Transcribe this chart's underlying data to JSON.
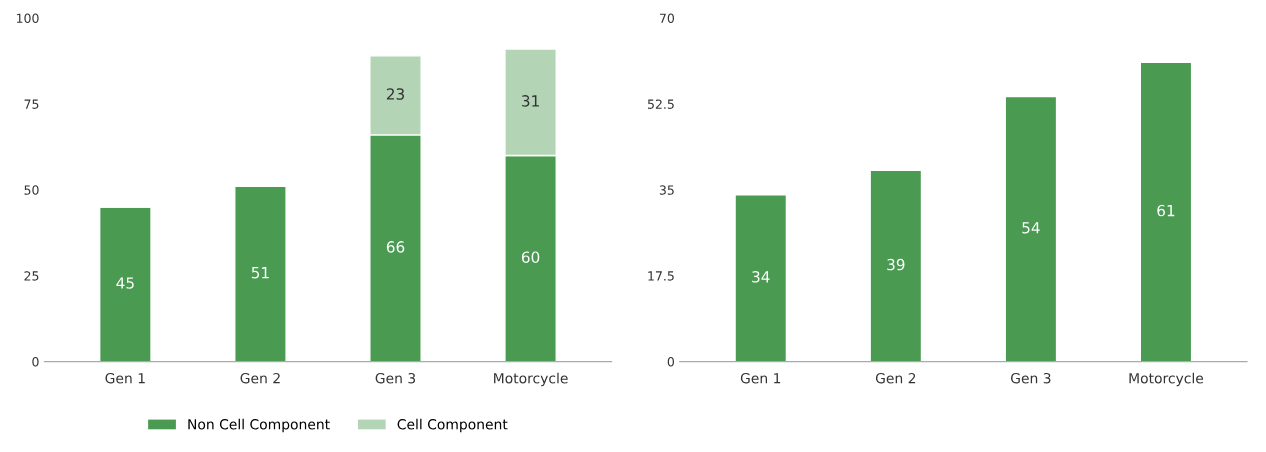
{
  "chart_data": [
    {
      "type": "bar",
      "stacked": true,
      "categories": [
        "Gen 1",
        "Gen 2",
        "Gen 3",
        "Motorcycle"
      ],
      "series": [
        {
          "name": "Non Cell Component",
          "color": "#4a9a52",
          "values": [
            45,
            51,
            66,
            60
          ]
        },
        {
          "name": "Cell Component",
          "color": "#b3d5b5",
          "values": [
            null,
            null,
            23,
            31
          ]
        }
      ],
      "ylim": [
        0,
        100
      ],
      "yticks": [
        0,
        25,
        50,
        75,
        100
      ],
      "grid": false,
      "legend": "bottom",
      "data_labels": true
    },
    {
      "type": "bar",
      "categories": [
        "Gen 1",
        "Gen 2",
        "Gen 3",
        "Motorcycle"
      ],
      "series": [
        {
          "color": "#4a9a52",
          "values": [
            34,
            39,
            54,
            61
          ]
        }
      ],
      "ylim": [
        0,
        70
      ],
      "yticks": [
        0,
        17.5,
        35,
        52.5,
        70
      ],
      "grid": false,
      "legend": false,
      "data_labels": true
    }
  ]
}
